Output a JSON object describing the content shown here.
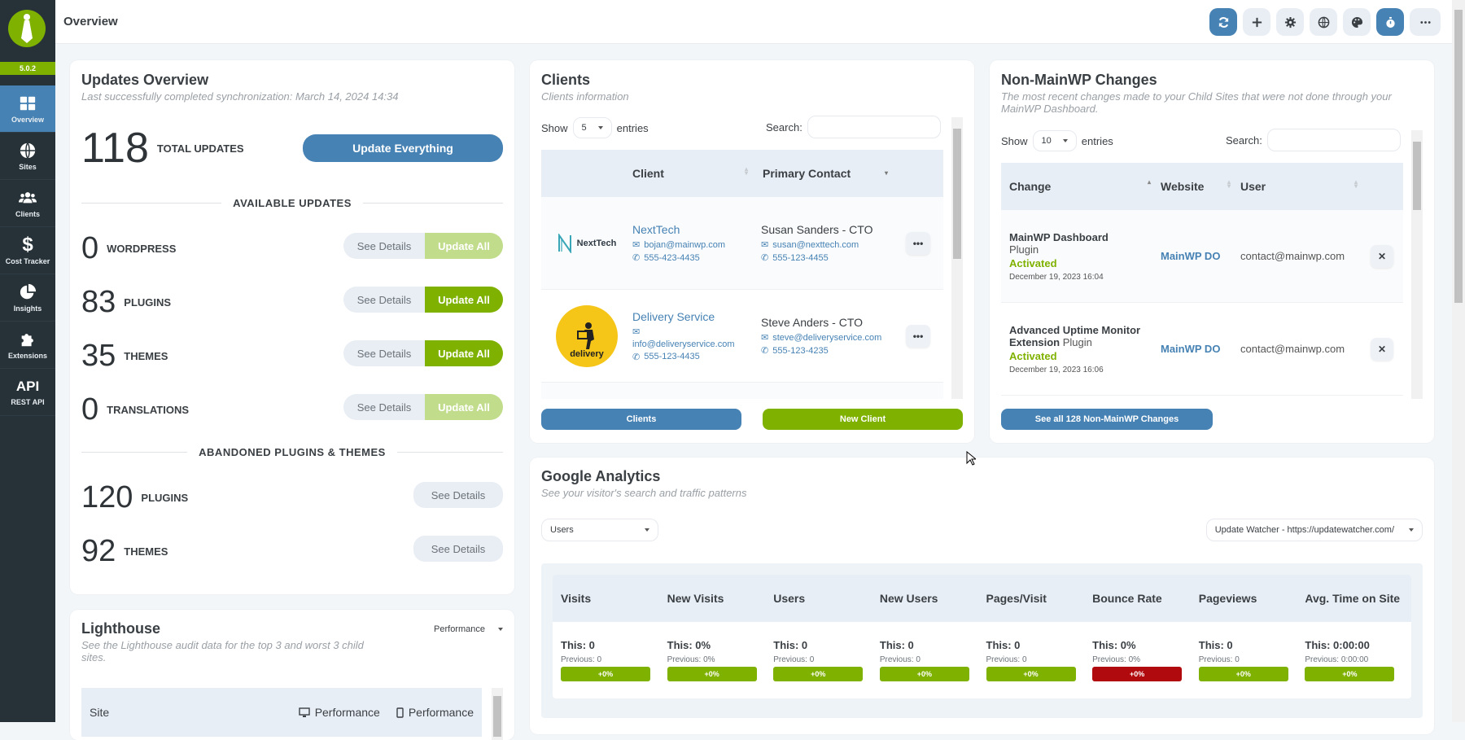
{
  "app": {
    "version": "5.0.2"
  },
  "sidebar": {
    "items": [
      {
        "label": "Overview",
        "icon": "grid-icon",
        "active": true
      },
      {
        "label": "Sites",
        "icon": "globe-icon"
      },
      {
        "label": "Clients",
        "icon": "users-icon"
      },
      {
        "label": "Cost Tracker",
        "icon": "dollar-icon"
      },
      {
        "label": "Insights",
        "icon": "pie-chart-icon"
      },
      {
        "label": "Extensions",
        "icon": "puzzle-icon"
      },
      {
        "label": "REST API",
        "icon": "api-icon",
        "glyph": "API"
      }
    ]
  },
  "header": {
    "title": "Overview",
    "buttons": [
      "sync-icon",
      "plus-icon",
      "gear-icon",
      "globe-icon",
      "palette-icon",
      "stopwatch-icon",
      "ellipsis-icon"
    ]
  },
  "updates": {
    "title": "Updates Overview",
    "subtitle": "Last successfully completed synchronization: March 14, 2024 14:34",
    "total": "118",
    "total_label": "TOTAL UPDATES",
    "update_everything": "Update Everything",
    "available_heading": "AVAILABLE UPDATES",
    "rows": [
      {
        "count": "0",
        "label": "WORDPRESS",
        "details": "See Details",
        "update": "Update All",
        "enabled": false
      },
      {
        "count": "83",
        "label": "PLUGINS",
        "details": "See Details",
        "update": "Update All",
        "enabled": true
      },
      {
        "count": "35",
        "label": "THEMES",
        "details": "See Details",
        "update": "Update All",
        "enabled": true
      },
      {
        "count": "0",
        "label": "TRANSLATIONS",
        "details": "See Details",
        "update": "Update All",
        "enabled": false
      }
    ],
    "abandoned_heading": "ABANDONED PLUGINS & THEMES",
    "abandoned": [
      {
        "count": "120",
        "label": "PLUGINS",
        "details": "See Details"
      },
      {
        "count": "92",
        "label": "THEMES",
        "details": "See Details"
      }
    ]
  },
  "lighthouse": {
    "title": "Lighthouse",
    "subtitle": "See the Lighthouse audit data for the top 3 and worst 3 child sites.",
    "dropdown": "Performance",
    "columns": [
      "Site",
      "Performance",
      "Performance"
    ]
  },
  "clients": {
    "title": "Clients",
    "subtitle": "Clients information",
    "show_label": "Show",
    "entries_value": "5",
    "entries_label": "entries",
    "search_label": "Search:",
    "search_value": "",
    "columns": [
      "Client",
      "Primary Contact"
    ],
    "rows": [
      {
        "logo": "NextTech",
        "name": "NextTech",
        "email": "bojan@mainwp.com",
        "phone": "555-423-4435",
        "contact": "Susan Sanders - CTO",
        "contact_email": "susan@nexttech.com",
        "contact_phone": "555-123-4455"
      },
      {
        "logo": "delivery",
        "name": "Delivery Service",
        "email": "info@deliveryservice.com",
        "phone": "555-123-4435",
        "contact": "Steve Anders - CTO",
        "contact_email": "steve@deliveryservice.com",
        "contact_phone": "555-123-4235"
      }
    ],
    "btn_clients": "Clients",
    "btn_new": "New Client"
  },
  "changes": {
    "title": "Non-MainWP Changes",
    "subtitle": "The most recent changes made to your Child Sites that were not done through your MainWP Dashboard.",
    "show_label": "Show",
    "entries_value": "10",
    "entries_label": "entries",
    "search_label": "Search:",
    "columns": [
      "Change",
      "Website",
      "User"
    ],
    "rows": [
      {
        "name": "MainWP Dashboard",
        "type": "Plugin",
        "status": "Activated",
        "date": "December 19, 2023 16:04",
        "website": "MainWP DO",
        "user": "contact@mainwp.com"
      },
      {
        "name": "Advanced Uptime Monitor Extension",
        "type": "Plugin",
        "status": "Activated",
        "date": "December 19, 2023 16:06",
        "website": "MainWP DO",
        "user": "contact@mainwp.com"
      }
    ],
    "see_all": "See all 128 Non-MainWP Changes"
  },
  "analytics": {
    "title": "Google Analytics",
    "subtitle": "See your visitor's search and traffic patterns",
    "metric_select": "Users",
    "site_select": "Update Watcher - https://updatewatcher.com/",
    "metrics": [
      {
        "label": "Visits",
        "this": "This: 0",
        "prev": "Previous: 0",
        "delta": "+0%",
        "color": "#7fb100"
      },
      {
        "label": "New Visits",
        "this": "This: 0%",
        "prev": "Previous: 0%",
        "delta": "+0%",
        "color": "#7fb100"
      },
      {
        "label": "Users",
        "this": "This: 0",
        "prev": "Previous: 0",
        "delta": "+0%",
        "color": "#7fb100"
      },
      {
        "label": "New Users",
        "this": "This: 0",
        "prev": "Previous: 0",
        "delta": "+0%",
        "color": "#7fb100"
      },
      {
        "label": "Pages/Visit",
        "this": "This: 0",
        "prev": "Previous: 0",
        "delta": "+0%",
        "color": "#7fb100"
      },
      {
        "label": "Bounce Rate",
        "this": "This: 0%",
        "prev": "Previous: 0%",
        "delta": "+0%",
        "color": "#b0090e"
      },
      {
        "label": "Pageviews",
        "this": "This: 0",
        "prev": "Previous: 0",
        "delta": "+0%",
        "color": "#7fb100"
      },
      {
        "label": "Avg. Time on Site",
        "this": "This: 0:00:00",
        "prev": "Previous: 0:00:00",
        "delta": "+0%",
        "color": "#7fb100"
      }
    ]
  },
  "colors": {
    "brand_green": "#7fb100",
    "accent_blue": "#4682b4",
    "sidebar": "#263238",
    "danger": "#b0090e"
  }
}
